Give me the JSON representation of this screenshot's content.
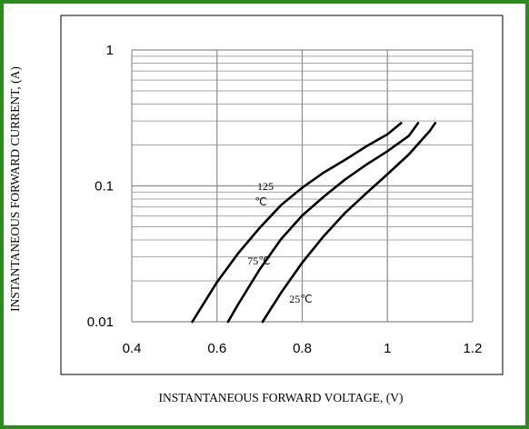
{
  "frame_color": "#2c8a1e",
  "chart_data": {
    "type": "line",
    "title": "",
    "xlabel": "INSTANTANEOUS FORWARD VOLTAGE, (V)",
    "ylabel": "INSTANTANEOUS FORWARD CURRENT, (A)",
    "xlim": [
      0.4,
      1.2
    ],
    "ylim": [
      0.01,
      1
    ],
    "yscale": "log",
    "grid": true,
    "x_ticks": [
      0.4,
      0.6,
      0.8,
      1,
      1.2
    ],
    "x_tick_labels": [
      "0.4",
      "0.6",
      "0.8",
      "1",
      "1.2"
    ],
    "y_ticks": [
      0.01,
      0.1,
      1
    ],
    "y_tick_labels": [
      "0.01",
      "0.1",
      "1"
    ],
    "series": [
      {
        "label_parts": [
          "125",
          "℃"
        ],
        "color": "#000000",
        "x": [
          0.542,
          0.6,
          0.65,
          0.7,
          0.75,
          0.8,
          0.85,
          0.9,
          0.95,
          1.0,
          1.032
        ],
        "y": [
          0.01,
          0.0196,
          0.032,
          0.049,
          0.072,
          0.097,
          0.125,
          0.155,
          0.195,
          0.24,
          0.29
        ]
      },
      {
        "label_parts": [
          "75℃"
        ],
        "color": "#000000",
        "x": [
          0.626,
          0.65,
          0.7,
          0.75,
          0.8,
          0.85,
          0.9,
          0.95,
          1.0,
          1.05,
          1.072
        ],
        "y": [
          0.01,
          0.0135,
          0.0242,
          0.0405,
          0.0605,
          0.083,
          0.111,
          0.143,
          0.18,
          0.233,
          0.29
        ]
      },
      {
        "label_parts": [
          "25℃"
        ],
        "color": "#000000",
        "x": [
          0.707,
          0.75,
          0.8,
          0.85,
          0.9,
          0.95,
          1.0,
          1.05,
          1.1,
          1.112
        ],
        "y": [
          0.01,
          0.0163,
          0.0272,
          0.0425,
          0.063,
          0.088,
          0.122,
          0.17,
          0.255,
          0.29
        ]
      }
    ]
  }
}
